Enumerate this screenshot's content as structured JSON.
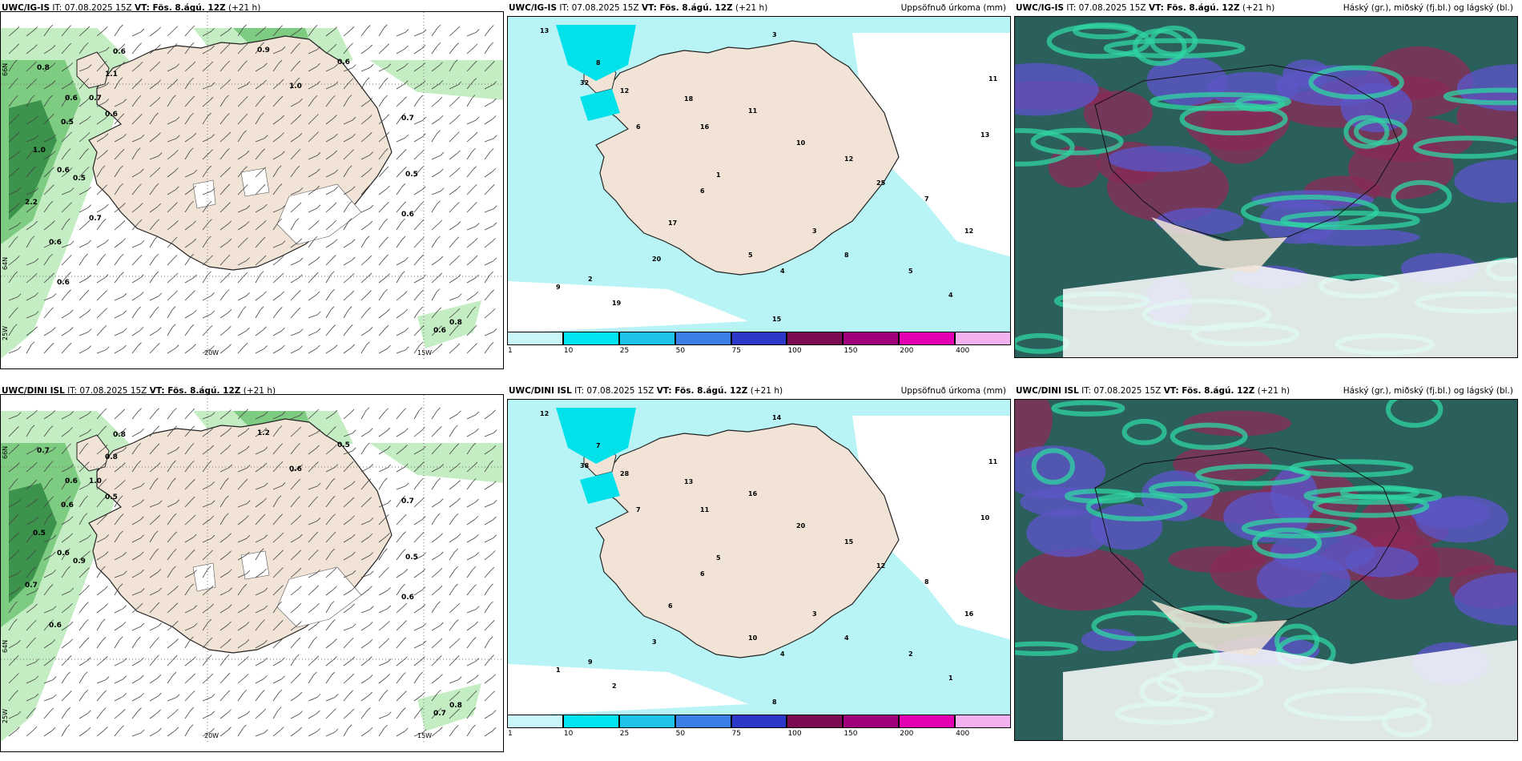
{
  "colors": {
    "land": "#f1e4d6",
    "sea": "#ffffff",
    "precip_light": "#b8f4f6",
    "precip_mid": "#00e1ea",
    "cloud_dark": "#2a5f5c",
    "cloud_high": "#8b2a58",
    "cloud_mid": "#5b55c5",
    "cloud_low": "#2fd6a3",
    "green_light": "#c5edc4",
    "green_mid": "#7ecc82",
    "green_dark": "#1f7a35"
  },
  "colorbar": {
    "ticks": [
      "1",
      "10",
      "25",
      "50",
      "75",
      "100",
      "150",
      "200",
      "400"
    ],
    "colors": [
      "#c9f7f9",
      "#00e5ef",
      "#1ec3e8",
      "#3a7fe6",
      "#2c39c8",
      "#7b0c52",
      "#a0007a",
      "#e200b2",
      "#f3b2ef"
    ]
  },
  "panels": [
    {
      "id": "igis-wind",
      "model": "UWC/IG-IS",
      "it_text": "IT: 07.08.2025 15Z",
      "vt_text": "VT: Fös. 8.ágú. 12Z",
      "offset": "(+21 h)",
      "right_title": "",
      "axis_labels": {
        "lon_a": "20W",
        "lon_b": "15W",
        "lat_a": "66N",
        "lat_b": "64N",
        "lon_c": "25W"
      },
      "values": [
        "0.6",
        "0.8",
        "0.7",
        "0.5",
        "1.0",
        "2.2",
        "0.5",
        "1.1",
        "0.9",
        "1.0",
        "0.6",
        "0.7",
        "0.5",
        "0.6",
        "0.6",
        "0.6",
        "0.6",
        "0.6",
        "0.8",
        "0.6",
        "0.7",
        "0.6"
      ]
    },
    {
      "id": "igis-precip",
      "model": "UWC/IG-IS",
      "it_text": "IT: 07.08.2025 15Z",
      "vt_text": "VT: Fös. 8.ágú. 12Z",
      "offset": "(+21 h)",
      "right_title": "Uppsöfnuð úrkoma (mm)",
      "values": [
        "3",
        "13",
        "8",
        "32",
        "12",
        "18",
        "11",
        "16",
        "10",
        "12",
        "25",
        "7",
        "5",
        "4",
        "17",
        "20",
        "19",
        "9",
        "2",
        "6",
        "1",
        "3",
        "8",
        "5",
        "4",
        "12",
        "13",
        "11",
        "15",
        "6"
      ]
    },
    {
      "id": "igis-cloud",
      "model": "UWC/IG-IS",
      "it_text": "IT: 07.08.2025 15Z",
      "vt_text": "VT: Fös. 8.ágú. 12Z",
      "offset": "(+21 h)",
      "right_title": "Háský (gr.), miðský (fj.bl.) og lágský (bl.)"
    },
    {
      "id": "dini-wind",
      "model": "UWC/DINI ISL",
      "it_text": "IT: 07.08.2025 15Z",
      "vt_text": "VT: Fös. 8.ágú. 12Z",
      "offset": "(+21 h)",
      "right_title": "",
      "axis_labels": {
        "lon_a": "20W",
        "lon_b": "15W",
        "lat_a": "66N",
        "lat_b": "64N",
        "lon_c": "25W"
      },
      "values": [
        "0.8",
        "0.7",
        "1.0",
        "0.6",
        "0.5",
        "0.7",
        "0.9",
        "0.8",
        "1.2",
        "0.6",
        "0.5",
        "0.7",
        "0.5",
        "0.6",
        "0.6",
        "0.5",
        "0.6",
        "0.7",
        "0.8",
        "0.6"
      ]
    },
    {
      "id": "dini-precip",
      "model": "UWC/DINI ISL",
      "it_text": "IT: 07.08.2025 15Z",
      "vt_text": "VT: Fös. 8.ágú. 12Z",
      "offset": "(+21 h)",
      "right_title": "Uppsöfnuð úrkoma (mm)",
      "values": [
        "14",
        "12",
        "7",
        "38",
        "28",
        "13",
        "16",
        "11",
        "20",
        "15",
        "12",
        "8",
        "10",
        "4",
        "6",
        "3",
        "2",
        "1",
        "9",
        "7",
        "5",
        "3",
        "4",
        "2",
        "1",
        "16",
        "10",
        "11",
        "8",
        "6"
      ]
    },
    {
      "id": "dini-cloud",
      "model": "UWC/DINI ISL",
      "it_text": "IT: 07.08.2025 15Z",
      "vt_text": "VT: Fös. 8.ágú. 12Z",
      "offset": "(+21 h)",
      "right_title": "Háský (gr.), miðský (fj.bl.) og lágský (bl.)"
    }
  ]
}
